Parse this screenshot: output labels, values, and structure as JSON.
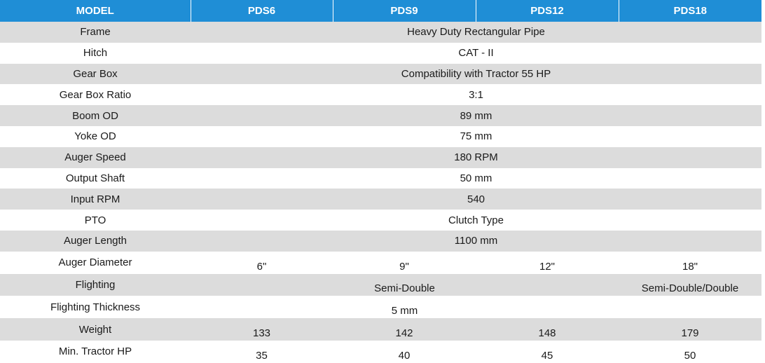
{
  "header": [
    "MODEL",
    "PDS6",
    "PDS9",
    "PDS12",
    "PDS18"
  ],
  "rows": {
    "frame": {
      "label": "Frame",
      "value": "Heavy Duty Rectangular Pipe"
    },
    "hitch": {
      "label": "Hitch",
      "value": "CAT - II"
    },
    "gear_box": {
      "label": "Gear Box",
      "value": "Compatibility with Tractor 55 HP"
    },
    "gear_box_ratio": {
      "label": "Gear Box Ratio",
      "value": "3:1"
    },
    "boom_od": {
      "label": "Boom OD",
      "value": "89 mm"
    },
    "yoke_od": {
      "label": "Yoke OD",
      "value": "75 mm"
    },
    "auger_speed": {
      "label": "Auger Speed",
      "value": "180 RPM"
    },
    "output_shaft": {
      "label": "Output Shaft",
      "value": "50 mm"
    },
    "input_rpm": {
      "label": "Input RPM",
      "value": "540"
    },
    "pto": {
      "label": "PTO",
      "value": "Clutch Type"
    },
    "auger_length": {
      "label": "Auger Length",
      "value": "1100 mm"
    },
    "auger_diameter": {
      "label": "Auger Diameter",
      "values": [
        "6\"",
        "9\"",
        "12\"",
        "18\""
      ]
    },
    "flighting": {
      "label": "Flighting",
      "value_pds6_to_pds12": "Semi-Double",
      "value_pds18": "Semi-Double/Double"
    },
    "flighting_thickness": {
      "label": "Flighting Thickness",
      "value": "5 mm"
    },
    "weight": {
      "label": "Weight",
      "values": [
        "133",
        "142",
        "148",
        "179"
      ]
    },
    "min_tractor_hp": {
      "label": "Min. Tractor HP",
      "values": [
        "35",
        "40",
        "45",
        "50"
      ]
    }
  }
}
